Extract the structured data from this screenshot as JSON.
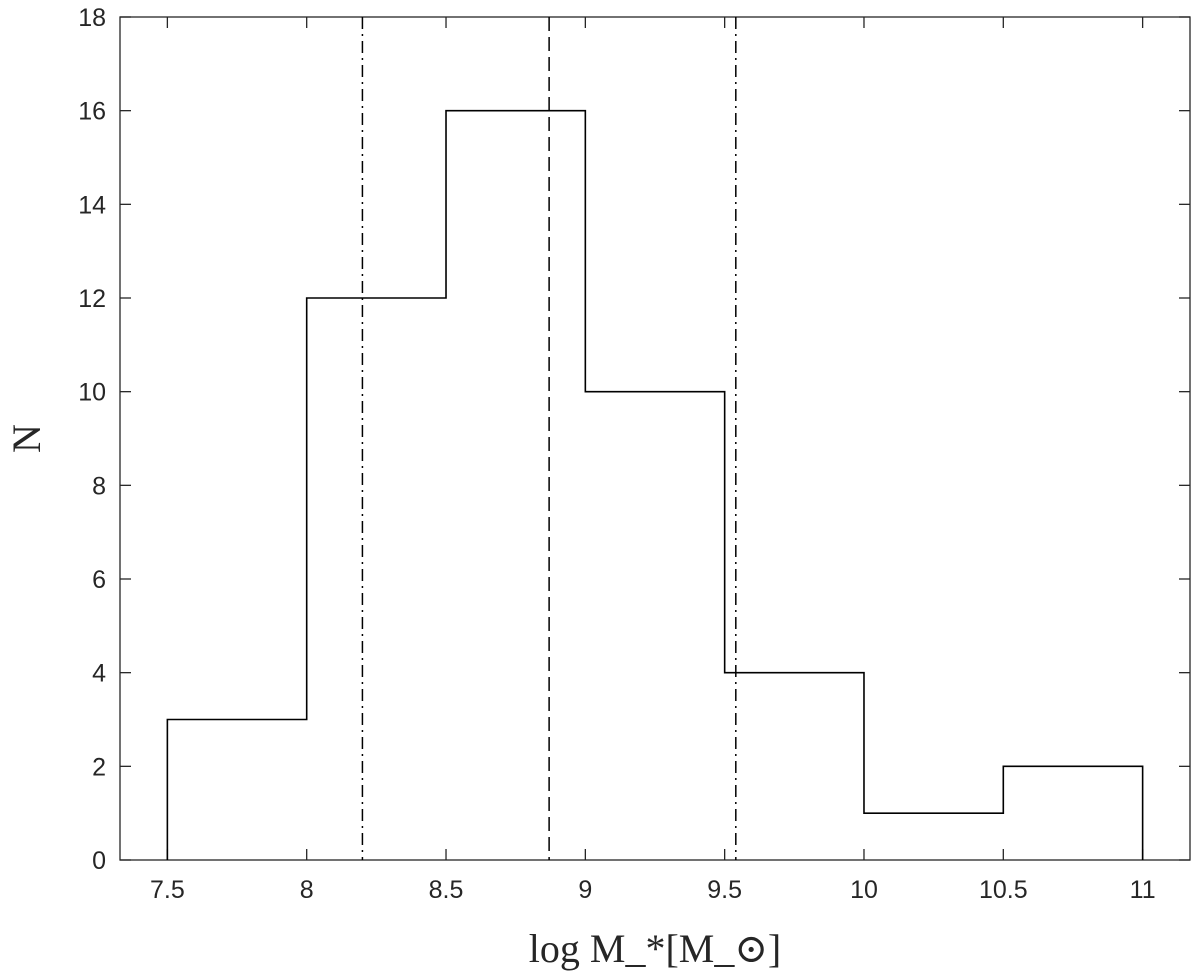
{
  "chart_data": {
    "type": "bar",
    "style": "step-histogram",
    "bin_edges": [
      7.5,
      8,
      8.5,
      9,
      9.5,
      10,
      10.5,
      11
    ],
    "values": [
      3,
      12,
      16,
      10,
      4,
      1,
      2
    ],
    "xlabel": "log M_*[M_⊙]",
    "xlabel_parts": {
      "main": "log M",
      "sub": "*",
      "bracket_open": "[M",
      "sun_sub": "⊙",
      "bracket_close": "]"
    },
    "ylabel": "N",
    "xlim": [
      7.33,
      11.17
    ],
    "ylim": [
      0,
      18
    ],
    "xticks": [
      7.5,
      8,
      8.5,
      9,
      9.5,
      10,
      10.5,
      11
    ],
    "xtick_labels": [
      "7.5",
      "8",
      "8.5",
      "9",
      "9.5",
      "10",
      "10.5",
      "11"
    ],
    "yticks": [
      0,
      2,
      4,
      6,
      8,
      10,
      12,
      14,
      16,
      18
    ],
    "ytick_labels": [
      "0",
      "2",
      "4",
      "6",
      "8",
      "10",
      "12",
      "14",
      "16",
      "18"
    ],
    "vertical_lines": [
      {
        "x": 8.2,
        "style": "dash-dot"
      },
      {
        "x": 8.87,
        "style": "dashed"
      },
      {
        "x": 9.54,
        "style": "dash-dot"
      }
    ],
    "grid": false,
    "colors": {
      "line": "#000000",
      "axes": "#262626"
    }
  }
}
